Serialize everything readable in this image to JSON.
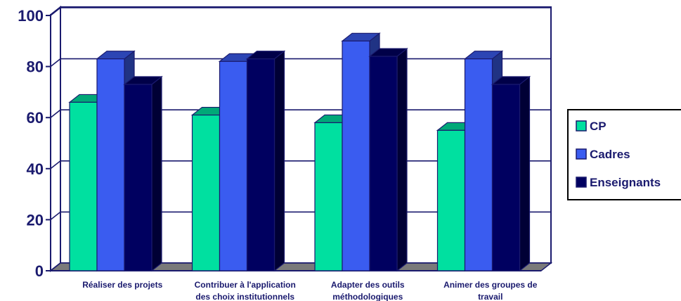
{
  "chart_data": {
    "type": "bar",
    "title": "",
    "xlabel": "",
    "ylabel": "",
    "ylim": [
      0,
      100
    ],
    "yticks": [
      0,
      20,
      40,
      60,
      80,
      100
    ],
    "grid": true,
    "legend_position": "right",
    "categories": [
      [
        "Réaliser des projets"
      ],
      [
        "Contribuer à l'application",
        "des choix institutionnels"
      ],
      [
        "Adapter des outils",
        "méthodologiques"
      ],
      [
        "Animer des groupes de",
        "travail"
      ]
    ],
    "series": [
      {
        "name": "CP",
        "color": "#00e0a0",
        "values": [
          66,
          61,
          58,
          55
        ]
      },
      {
        "name": "Cadres",
        "color": "#3a5cf0",
        "values": [
          83,
          82,
          90,
          83
        ]
      },
      {
        "name": "Enseignants",
        "color": "#000060",
        "values": [
          73,
          83,
          84,
          73
        ]
      }
    ]
  }
}
